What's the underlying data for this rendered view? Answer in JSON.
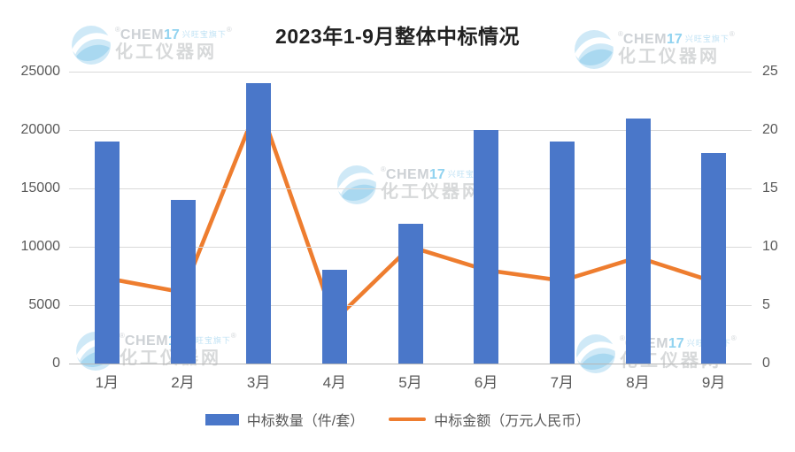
{
  "chart_data": {
    "type": "bar",
    "combo": "bar+line",
    "title": "2023年1-9月整体中标情况",
    "categories": [
      "1月",
      "2月",
      "3月",
      "4月",
      "5月",
      "6月",
      "7月",
      "8月",
      "9月"
    ],
    "series": [
      {
        "name": "中标数量（件/套）",
        "type": "bar",
        "axis": "left",
        "color": "#4a77c9",
        "values": [
          19000,
          14000,
          24000,
          8000,
          12000,
          20000,
          19000,
          21000,
          18000
        ]
      },
      {
        "name": "中标金额（万元人民币）",
        "type": "line",
        "axis": "right",
        "color": "#ee7d2f",
        "values": [
          7.3,
          6.1,
          22.3,
          3.7,
          10,
          8,
          7.1,
          9.1,
          7
        ]
      }
    ],
    "left_axis": {
      "label": "",
      "min": 0,
      "max": 25000,
      "ticks": [
        0,
        5000,
        10000,
        15000,
        20000,
        25000
      ]
    },
    "right_axis": {
      "label": "",
      "min": 0,
      "max": 25,
      "ticks": [
        0,
        5,
        10,
        15,
        20,
        25
      ]
    },
    "xlabel": "",
    "ylabel": "",
    "grid": true,
    "legend_position": "bottom"
  },
  "watermark": {
    "registered_mark": "®",
    "brand": "CHEM",
    "brand_number": "17",
    "tagline": "兴旺宝旗下",
    "site_name": "化工仪器网"
  }
}
